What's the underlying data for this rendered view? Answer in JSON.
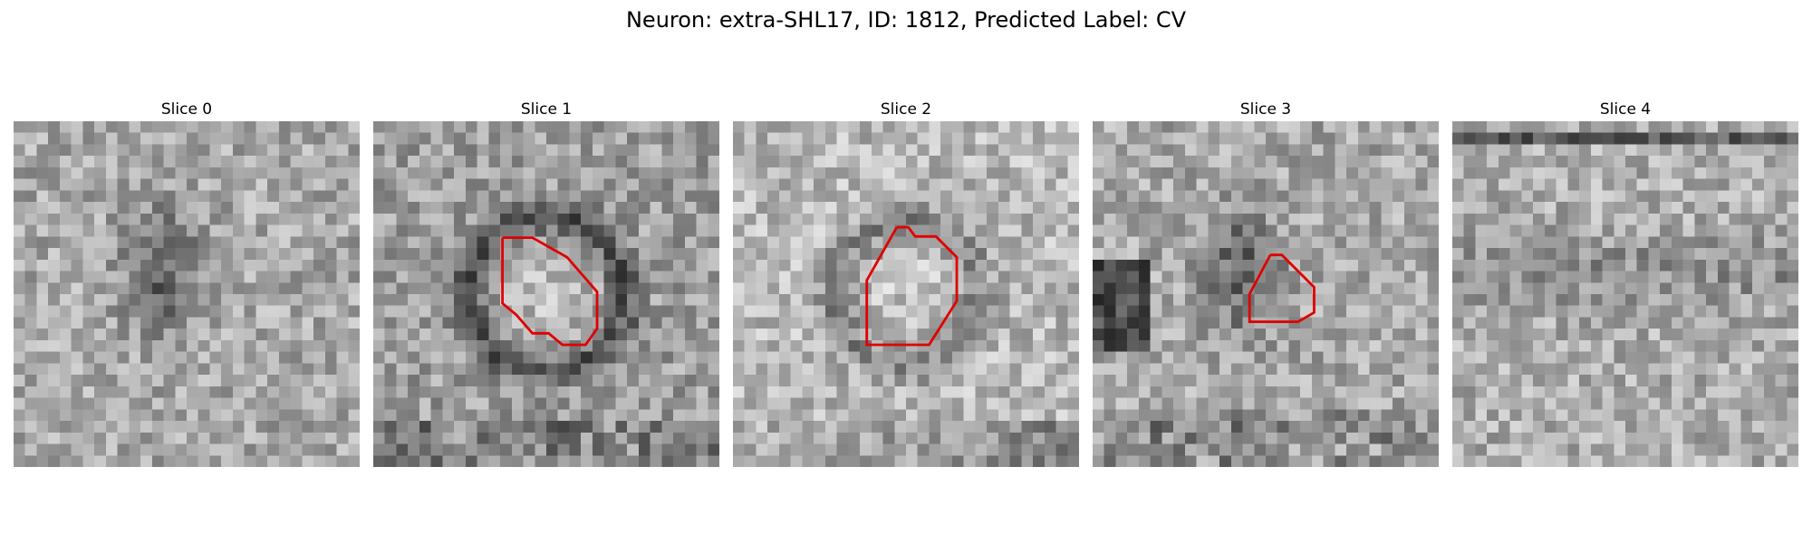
{
  "figure": {
    "title": "Neuron: extra-SHL17, ID: 1812, Predicted Label: CV"
  },
  "panels": [
    {
      "title": "Slice 0",
      "has_contour": false,
      "seed": 11,
      "blob": "dark-center"
    },
    {
      "title": "Slice 1",
      "has_contour": true,
      "seed": 23,
      "blob": "ring"
    },
    {
      "title": "Slice 2",
      "has_contour": true,
      "seed": 37,
      "blob": "ring-soft"
    },
    {
      "title": "Slice 3",
      "has_contour": true,
      "seed": 41,
      "blob": "dark-center"
    },
    {
      "title": "Slice 4",
      "has_contour": false,
      "seed": 53,
      "blob": "none"
    }
  ],
  "colors": {
    "contour": "#e00000",
    "background": "#ffffff"
  }
}
